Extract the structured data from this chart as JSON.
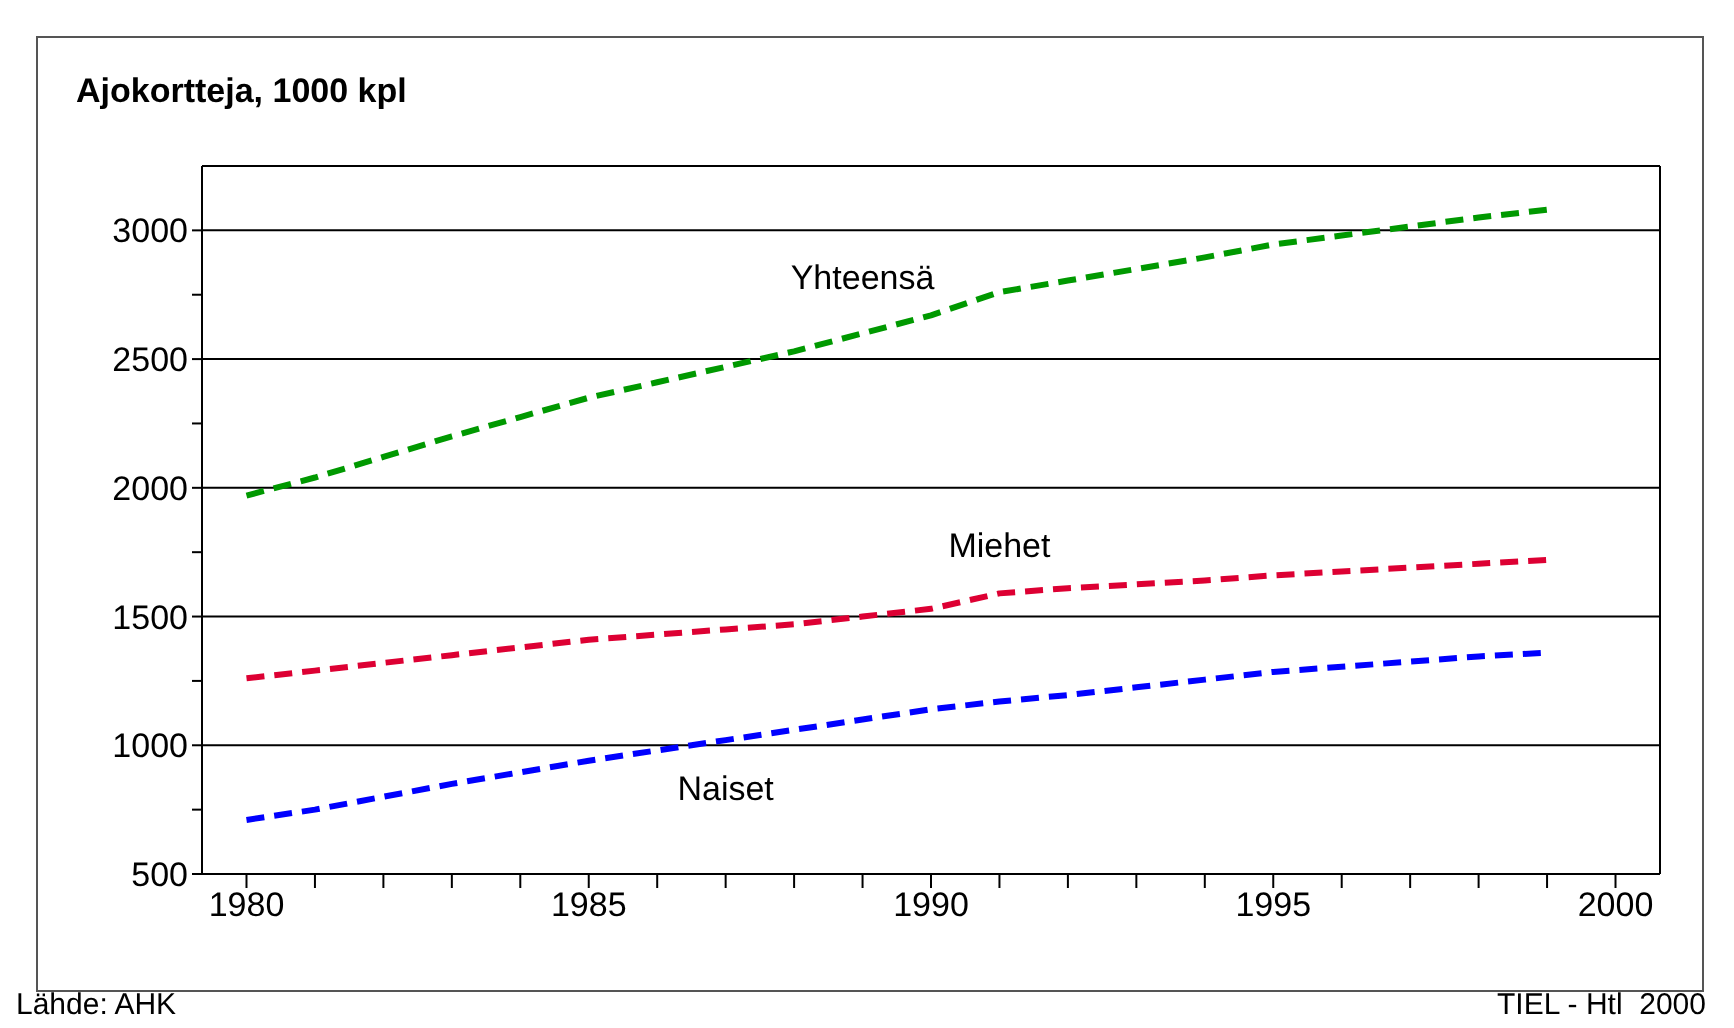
{
  "chart_data": {
    "type": "line",
    "title": "Ajokortteja, 1000 kpl",
    "x": [
      1980,
      1981,
      1982,
      1983,
      1984,
      1985,
      1986,
      1987,
      1988,
      1989,
      1990,
      1991,
      1992,
      1993,
      1994,
      1995,
      1996,
      1997,
      1998,
      1999
    ],
    "series": [
      {
        "name": "Yhteensä",
        "color": "#009900",
        "values": [
          1970,
          2040,
          2120,
          2200,
          2275,
          2350,
          2410,
          2470,
          2530,
          2600,
          2670,
          2760,
          2805,
          2850,
          2895,
          2945,
          2980,
          3015,
          3050,
          3080
        ]
      },
      {
        "name": "Miehet",
        "color": "#dd0033",
        "values": [
          1260,
          1290,
          1320,
          1350,
          1380,
          1410,
          1430,
          1450,
          1470,
          1500,
          1530,
          1590,
          1610,
          1625,
          1640,
          1660,
          1675,
          1690,
          1705,
          1720
        ]
      },
      {
        "name": "Naiset",
        "color": "#0000ff",
        "values": [
          710,
          750,
          800,
          850,
          895,
          940,
          980,
          1020,
          1060,
          1100,
          1140,
          1170,
          1195,
          1225,
          1255,
          1285,
          1305,
          1325,
          1345,
          1360
        ]
      }
    ],
    "xlim": [
      1979.35,
      2000.65
    ],
    "xticks": [
      1980,
      {
        "value": 1981,
        "label": null
      },
      {
        "value": 1982,
        "label": null
      },
      {
        "value": 1983,
        "label": null
      },
      {
        "value": 1984,
        "label": null
      },
      1985,
      {
        "value": 1986,
        "label": null
      },
      {
        "value": 1987,
        "label": null
      },
      {
        "value": 1988,
        "label": null
      },
      {
        "value": 1989,
        "label": null
      },
      1990,
      {
        "value": 1991,
        "label": null
      },
      {
        "value": 1992,
        "label": null
      },
      {
        "value": 1993,
        "label": null
      },
      {
        "value": 1994,
        "label": null
      },
      1995,
      {
        "value": 1996,
        "label": null
      },
      {
        "value": 1997,
        "label": null
      },
      {
        "value": 1998,
        "label": null
      },
      {
        "value": 1999,
        "label": null
      },
      2000
    ],
    "ylim": [
      500,
      3250
    ],
    "yticks": [
      500,
      {
        "value": 750,
        "label": null
      },
      1000,
      {
        "value": 1250,
        "label": null
      },
      1500,
      {
        "value": 1750,
        "label": null
      },
      2000,
      {
        "value": 2250,
        "label": null
      },
      2500,
      {
        "value": 2750,
        "label": null
      },
      3000
    ],
    "grid": "y",
    "marker": "none",
    "line_style": "dashed",
    "annotations": [
      "Lähde: AHK",
      "TIEL - Htl  2000"
    ]
  }
}
